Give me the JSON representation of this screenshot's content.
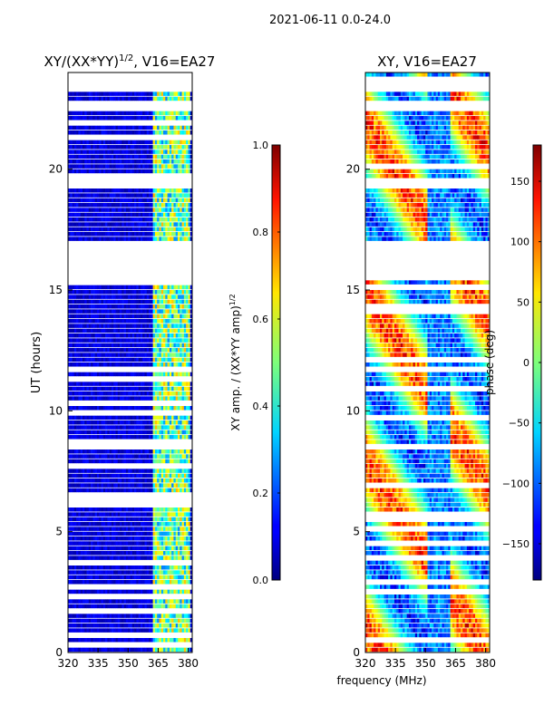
{
  "chart_data": {
    "type": "heatmap",
    "suptitle": "2021-06-11 0.0-24.0",
    "xlabel": "frequency (MHz)",
    "ylabel": "UT (hours)",
    "panels": [
      {
        "title_main": "XY/(XX*YY)",
        "title_sup": "1/2",
        "title_tail": ", V16=EA27",
        "quantity": "normalized XY amplitude",
        "x_range": [
          320,
          382
        ],
        "y_range": [
          0,
          24
        ],
        "x_ticks": [
          "320",
          "335",
          "350",
          "365",
          "380"
        ],
        "x_tick_values": [
          320,
          335,
          350,
          365,
          380
        ],
        "y_ticks": [
          "0",
          "5",
          "10",
          "15",
          "20"
        ],
        "y_tick_values": [
          0,
          5,
          10,
          15,
          20
        ],
        "colorbar": {
          "label_main": "XY amp. / (XX*YY amp)",
          "label_sup": "1/2",
          "range": [
            0.0,
            1.0
          ],
          "ticks": [
            "0.0",
            "0.2",
            "0.4",
            "0.6",
            "0.8",
            "1.0"
          ],
          "tick_values": [
            0.0,
            0.2,
            0.4,
            0.6,
            0.8,
            1.0
          ]
        },
        "typical_values": {
          "320-362 MHz": 0.08,
          "362-380 MHz": 0.45
        },
        "flagged_hours": [
          [
            15.5,
            17.0
          ],
          [
            19.2,
            19.6
          ],
          [
            22.4,
            22.7
          ],
          [
            23.3,
            23.5
          ]
        ]
      },
      {
        "title_main": "XY, V16=EA27",
        "quantity": "XY phase",
        "x_range": [
          320,
          382
        ],
        "y_range": [
          0,
          24
        ],
        "x_ticks": [
          "320",
          "335",
          "350",
          "365",
          "380"
        ],
        "x_tick_values": [
          320,
          335,
          350,
          365,
          380
        ],
        "y_ticks": [
          "0",
          "5",
          "10",
          "15",
          "20"
        ],
        "y_tick_values": [
          0,
          5,
          10,
          15,
          20
        ],
        "colorbar": {
          "label_main": "phase (deg)",
          "range": [
            -180,
            180
          ],
          "ticks": [
            "−150",
            "−100",
            "−50",
            "0",
            "50",
            "100",
            "150"
          ],
          "tick_values": [
            -150,
            -100,
            -50,
            0,
            50,
            100,
            150
          ]
        },
        "flagged_hours": [
          [
            15.5,
            17.0
          ],
          [
            19.2,
            19.6
          ],
          [
            22.4,
            22.7
          ],
          [
            23.3,
            23.5
          ]
        ]
      }
    ]
  }
}
